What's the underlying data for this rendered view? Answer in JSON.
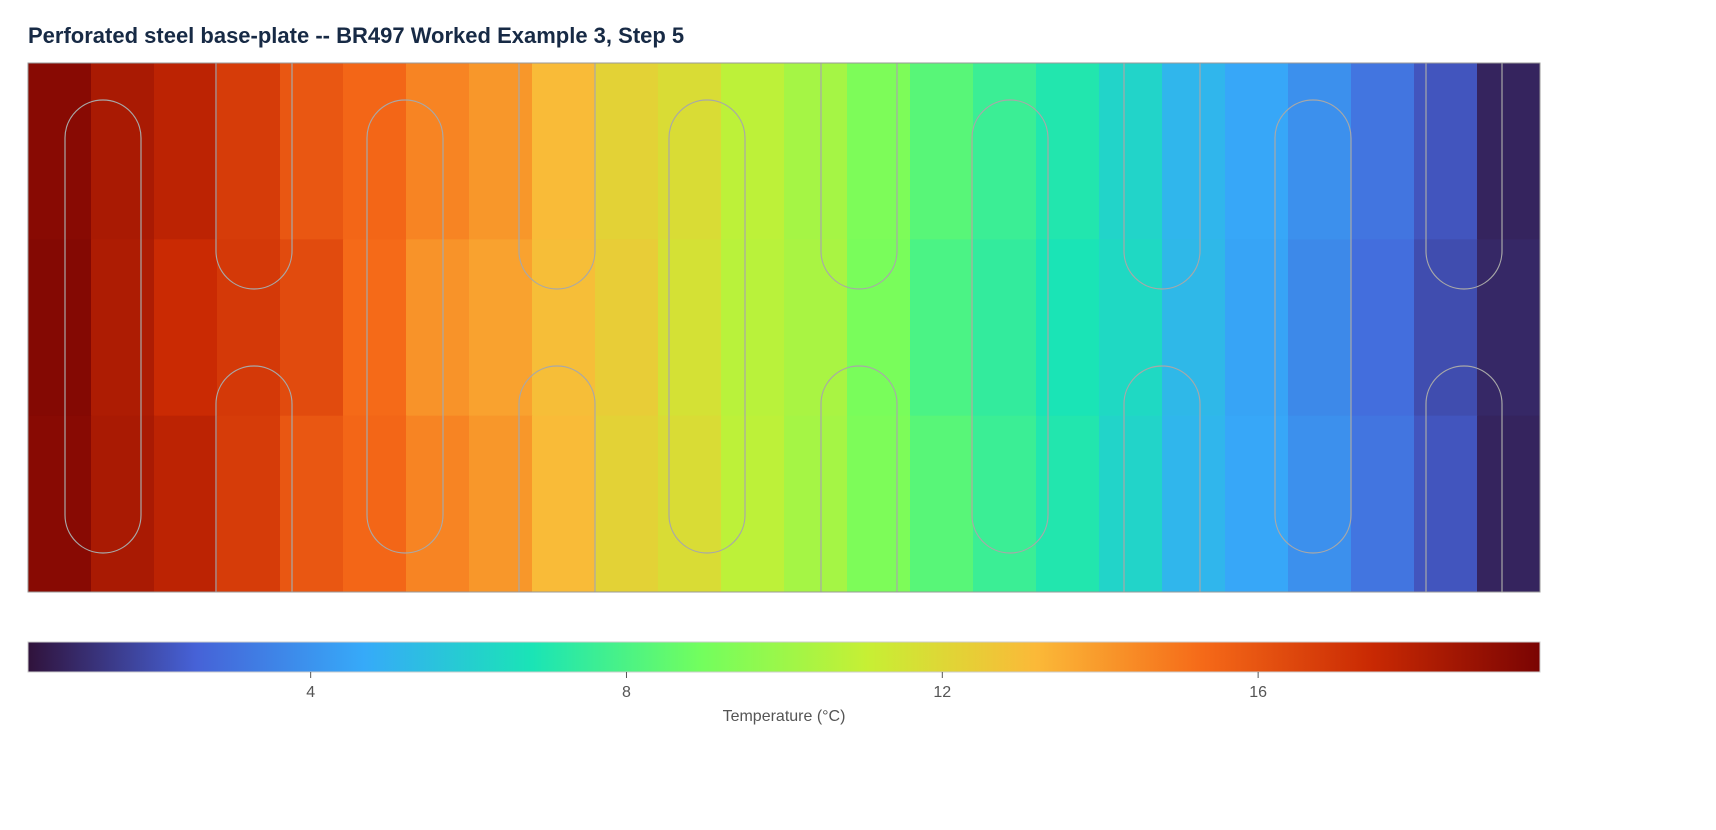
{
  "chart_data": {
    "type": "contour",
    "title": "Perforated steel base-plate -- BR497 Worked Example 3, Step 5",
    "z": [
      [
        19.2,
        18.3,
        17.8,
        16.8,
        15.9,
        15.4,
        14.6,
        14.1,
        13.1,
        12.2,
        11.8,
        10.8,
        10.2,
        9.2,
        8.3,
        7.6,
        7.0,
        6.2,
        5.1,
        4.6,
        3.9,
        3.1,
        2.2,
        0.9
      ],
      [
        19.3,
        18.2,
        17.4,
        16.9,
        16.3,
        15.3,
        14.2,
        13.8,
        13.0,
        12.4,
        11.6,
        10.7,
        10.3,
        9.1,
        8.0,
        7.4,
        6.8,
        6.4,
        5.2,
        4.5,
        3.7,
        2.9,
        2.0,
        1.0
      ],
      [
        19.2,
        18.3,
        17.8,
        16.8,
        15.9,
        15.4,
        14.6,
        14.1,
        13.1,
        12.2,
        11.8,
        10.8,
        10.2,
        9.2,
        8.3,
        7.6,
        7.0,
        6.2,
        5.1,
        4.6,
        3.9,
        3.1,
        2.2,
        0.9
      ]
    ],
    "colorscale": [
      "#30123b",
      "#4662d7",
      "#36aaf9",
      "#1ae4b6",
      "#72fe5e",
      "#c7ef34",
      "#fbb938",
      "#f56918",
      "#c92903",
      "#7a0403"
    ],
    "colorbar": {
      "title": "Temperature (°C)",
      "clim": [
        0.42,
        19.57
      ],
      "ticks": [
        4,
        8,
        12,
        16
      ]
    }
  }
}
